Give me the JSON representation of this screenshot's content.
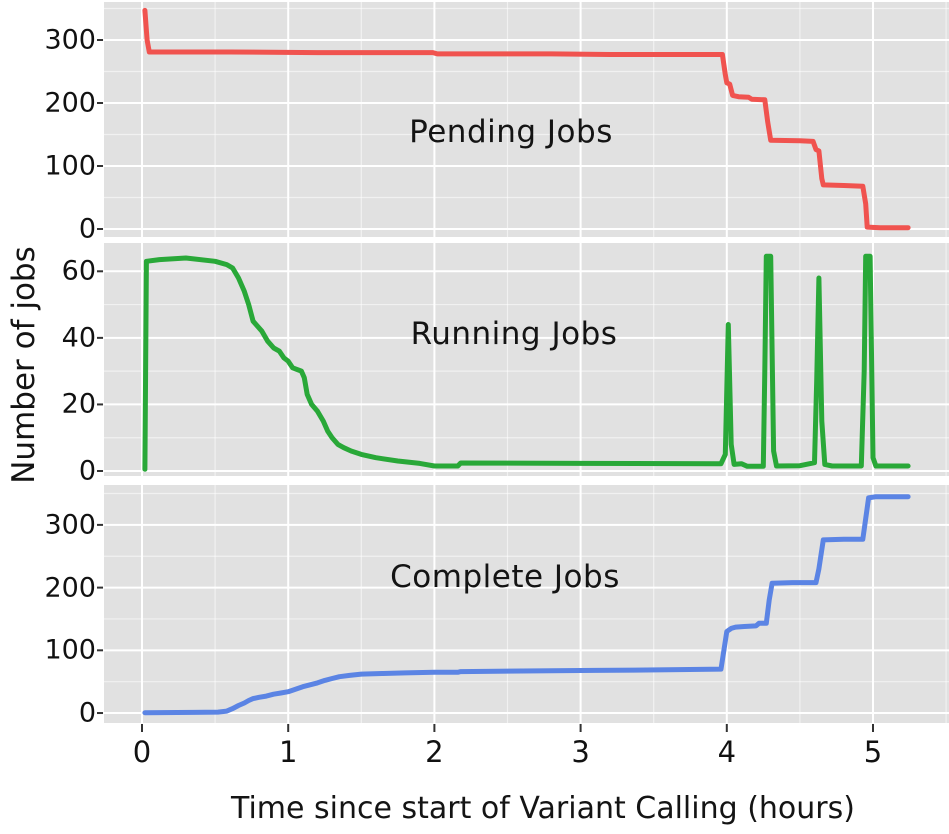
{
  "chart_data": {
    "type": "line",
    "x_axis_label": "Time since start of Variant Calling (hours)",
    "y_axis_label": "Number of jobs",
    "x_tick_labels": [
      "0",
      "1",
      "2",
      "3",
      "4",
      "5"
    ],
    "x_tick_values": [
      0,
      1,
      2,
      3,
      4,
      5
    ],
    "x_minor_ticks": [
      0.5,
      1.5,
      2.5,
      3.5,
      4.5,
      5.5
    ],
    "x_range": [
      -0.26,
      5.52
    ],
    "grid": "on",
    "legend_position": "none",
    "colors": {
      "panel_background": "#e1e1e1",
      "grid_major": "#ffffff",
      "grid_minor": "#f2f2f2",
      "tick_mark": "#333333",
      "figure_background": "#ffffff",
      "text": "#111111"
    },
    "panels": [
      {
        "label": "Pending Jobs",
        "series_name": "pending_jobs",
        "color": "#f0534f",
        "y_ticks": [
          0,
          100,
          200,
          300
        ],
        "y_minor_ticks": [
          50,
          150,
          250,
          350
        ],
        "y_range": [
          -12.7,
          360.3
        ],
        "points": [
          [
            0.02,
            347
          ],
          [
            0.035,
            300
          ],
          [
            0.05,
            281
          ],
          [
            0.6,
            281
          ],
          [
            1.2,
            280
          ],
          [
            1.99,
            280
          ],
          [
            2.02,
            278
          ],
          [
            2.8,
            278
          ],
          [
            3.2,
            277
          ],
          [
            3.97,
            277
          ],
          [
            3.99,
            245
          ],
          [
            4.0,
            232
          ],
          [
            4.02,
            230
          ],
          [
            4.04,
            212
          ],
          [
            4.08,
            210
          ],
          [
            4.15,
            209
          ],
          [
            4.17,
            206
          ],
          [
            4.26,
            205
          ],
          [
            4.28,
            170
          ],
          [
            4.3,
            141
          ],
          [
            4.5,
            140
          ],
          [
            4.59,
            139
          ],
          [
            4.61,
            126
          ],
          [
            4.63,
            124
          ],
          [
            4.65,
            80
          ],
          [
            4.66,
            70
          ],
          [
            4.8,
            69
          ],
          [
            4.93,
            68
          ],
          [
            4.95,
            40
          ],
          [
            4.96,
            3
          ],
          [
            5.05,
            2
          ],
          [
            5.24,
            2
          ]
        ]
      },
      {
        "label": "Running Jobs",
        "series_name": "running_jobs",
        "color": "#29a838",
        "y_ticks": [
          0,
          20,
          40,
          60
        ],
        "y_minor_ticks": [
          10,
          30,
          50,
          70
        ],
        "y_range": [
          -1.5,
          68.5
        ],
        "points": [
          [
            0.02,
            0.5
          ],
          [
            0.03,
            63
          ],
          [
            0.12,
            63.5
          ],
          [
            0.3,
            64
          ],
          [
            0.5,
            63
          ],
          [
            0.58,
            62
          ],
          [
            0.62,
            61
          ],
          [
            0.66,
            58
          ],
          [
            0.7,
            54
          ],
          [
            0.73,
            50
          ],
          [
            0.76,
            45
          ],
          [
            0.78,
            44
          ],
          [
            0.82,
            42
          ],
          [
            0.86,
            39
          ],
          [
            0.9,
            37
          ],
          [
            0.94,
            36
          ],
          [
            0.97,
            34
          ],
          [
            1.0,
            33
          ],
          [
            1.03,
            31
          ],
          [
            1.09,
            30
          ],
          [
            1.11,
            28
          ],
          [
            1.13,
            23
          ],
          [
            1.16,
            20
          ],
          [
            1.2,
            18
          ],
          [
            1.24,
            15
          ],
          [
            1.27,
            12
          ],
          [
            1.3,
            10
          ],
          [
            1.34,
            8
          ],
          [
            1.38,
            7
          ],
          [
            1.43,
            6
          ],
          [
            1.5,
            5
          ],
          [
            1.6,
            4
          ],
          [
            1.75,
            3
          ],
          [
            1.9,
            2.3
          ],
          [
            2.0,
            1.5
          ],
          [
            2.16,
            1.5
          ],
          [
            2.18,
            2.4
          ],
          [
            3.0,
            2.3
          ],
          [
            3.96,
            2.2
          ],
          [
            3.99,
            5
          ],
          [
            4.01,
            44
          ],
          [
            4.03,
            8
          ],
          [
            4.05,
            2
          ],
          [
            4.1,
            2.2
          ],
          [
            4.14,
            1.4
          ],
          [
            4.25,
            1.4
          ],
          [
            4.26,
            30
          ],
          [
            4.27,
            64.5
          ],
          [
            4.3,
            64.5
          ],
          [
            4.32,
            6
          ],
          [
            4.34,
            1.5
          ],
          [
            4.5,
            1.6
          ],
          [
            4.6,
            2.5
          ],
          [
            4.615,
            27
          ],
          [
            4.63,
            58
          ],
          [
            4.65,
            15
          ],
          [
            4.67,
            2
          ],
          [
            4.72,
            1.5
          ],
          [
            4.92,
            1.5
          ],
          [
            4.94,
            30
          ],
          [
            4.95,
            64.5
          ],
          [
            4.98,
            64.5
          ],
          [
            5.0,
            4
          ],
          [
            5.02,
            1.5
          ],
          [
            5.24,
            1.5
          ]
        ]
      },
      {
        "label": "Complete Jobs",
        "series_name": "complete_jobs",
        "color": "#5b84e4",
        "y_ticks": [
          0,
          100,
          200,
          300
        ],
        "y_minor_ticks": [
          50,
          150,
          250,
          350
        ],
        "y_range": [
          -15.9,
          363.6
        ],
        "points": [
          [
            0.02,
            0.5
          ],
          [
            0.35,
            1
          ],
          [
            0.52,
            1.5
          ],
          [
            0.58,
            3
          ],
          [
            0.62,
            7
          ],
          [
            0.66,
            12
          ],
          [
            0.7,
            16
          ],
          [
            0.73,
            20
          ],
          [
            0.76,
            23
          ],
          [
            0.8,
            25
          ],
          [
            0.85,
            27
          ],
          [
            0.9,
            30
          ],
          [
            0.95,
            32
          ],
          [
            1.0,
            34
          ],
          [
            1.05,
            38
          ],
          [
            1.1,
            42
          ],
          [
            1.15,
            45
          ],
          [
            1.2,
            48
          ],
          [
            1.25,
            52
          ],
          [
            1.3,
            55
          ],
          [
            1.35,
            58
          ],
          [
            1.42,
            60
          ],
          [
            1.5,
            62
          ],
          [
            1.65,
            63
          ],
          [
            1.8,
            64
          ],
          [
            2.0,
            65
          ],
          [
            2.16,
            65
          ],
          [
            2.18,
            66
          ],
          [
            2.6,
            67
          ],
          [
            3.1,
            68
          ],
          [
            3.6,
            69
          ],
          [
            3.96,
            70
          ],
          [
            3.98,
            100
          ],
          [
            4.0,
            130
          ],
          [
            4.03,
            135
          ],
          [
            4.06,
            137
          ],
          [
            4.12,
            138
          ],
          [
            4.2,
            139
          ],
          [
            4.22,
            143
          ],
          [
            4.27,
            143
          ],
          [
            4.29,
            180
          ],
          [
            4.31,
            207
          ],
          [
            4.45,
            208
          ],
          [
            4.61,
            208
          ],
          [
            4.63,
            230
          ],
          [
            4.66,
            276
          ],
          [
            4.8,
            277
          ],
          [
            4.93,
            277
          ],
          [
            4.95,
            310
          ],
          [
            4.97,
            343
          ],
          [
            5.02,
            345
          ],
          [
            5.24,
            345
          ]
        ]
      }
    ]
  }
}
